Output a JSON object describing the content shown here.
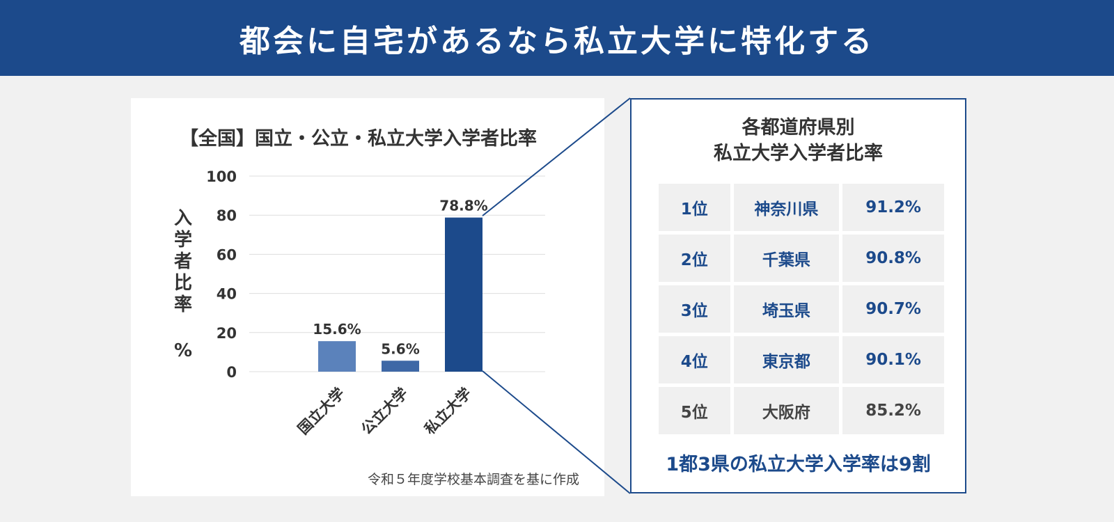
{
  "header": {
    "title": "都会に自宅があるなら私立大学に特化する"
  },
  "chart_data": {
    "type": "bar",
    "title": "【全国】国立・公立・私立大学入学者比率",
    "ylabel": "入学者比率",
    "yunit": "%",
    "categories": [
      "国立大学",
      "公立大学",
      "私立大学"
    ],
    "values": [
      15.6,
      5.6,
      78.8
    ],
    "data_labels": [
      "15.6%",
      "5.6%",
      "78.8%"
    ],
    "bar_colors": [
      "#5b82bb",
      "#3e68a6",
      "#1c4a8b"
    ],
    "ylim": [
      0,
      100
    ],
    "yticks": [
      0,
      20,
      40,
      60,
      80,
      100
    ],
    "grid": true
  },
  "source_note": "令和５年度学校基本調査を基に作成",
  "table": {
    "title_line1": "各都道府県別",
    "title_line2": "私立大学入学者比率",
    "rows": [
      {
        "rank": "1位",
        "prefecture": "神奈川県",
        "rate": "91.2%"
      },
      {
        "rank": "2位",
        "prefecture": "千葉県",
        "rate": "90.8%"
      },
      {
        "rank": "3位",
        "prefecture": "埼玉県",
        "rate": "90.7%"
      },
      {
        "rank": "4位",
        "prefecture": "東京都",
        "rate": "90.1%"
      },
      {
        "rank": "5位",
        "prefecture": "大阪府",
        "rate": "85.2%"
      }
    ],
    "footer": "1都3県の私立大学入学率は9割"
  },
  "colors": {
    "brand": "#1c4a8b",
    "background": "#f1f1f1",
    "cell": "#f0f0f0"
  }
}
